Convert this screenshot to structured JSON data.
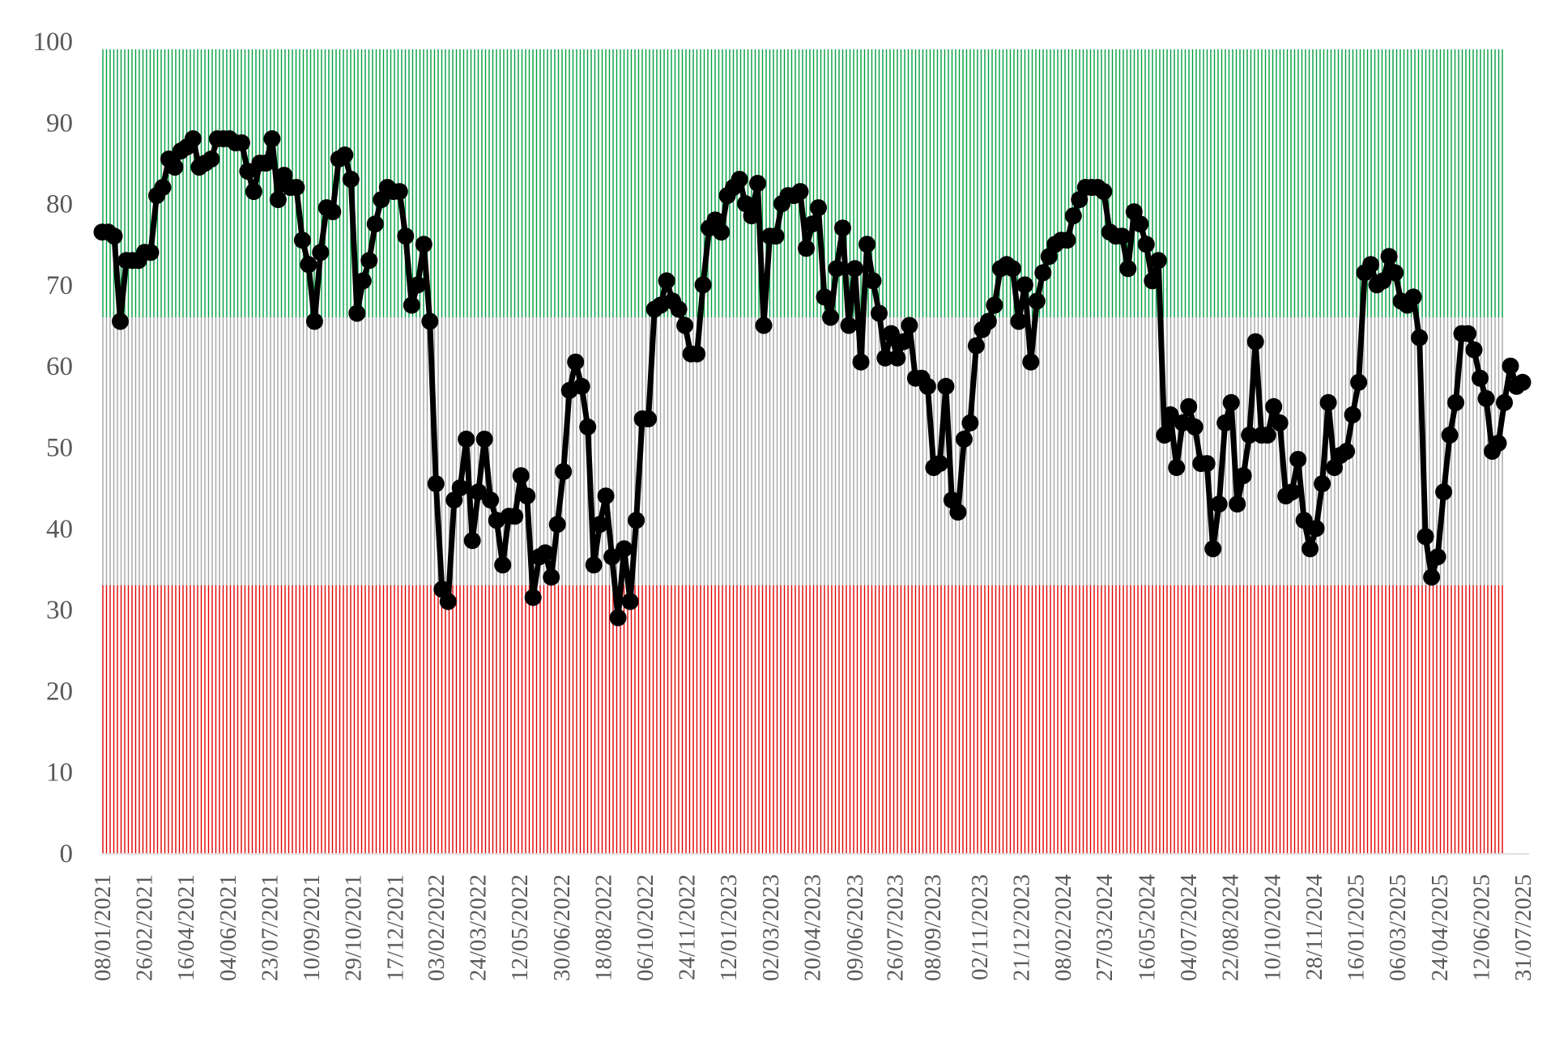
{
  "chart_data": {
    "type": "line",
    "title": "",
    "xlabel": "",
    "ylabel": "",
    "ylim": [
      0,
      100
    ],
    "y_ticks": [
      0,
      10,
      20,
      30,
      40,
      50,
      60,
      70,
      80,
      90,
      100
    ],
    "x_range": [
      "2021-01-08",
      "2025-07-31"
    ],
    "x_tick_labels": [
      "08/01/2021",
      "26/02/2021",
      "16/04/2021",
      "04/06/2021",
      "23/07/2021",
      "10/09/2021",
      "29/10/2021",
      "17/12/2021",
      "03/02/2022",
      "24/03/2022",
      "12/05/2022",
      "30/06/2022",
      "18/08/2022",
      "06/10/2022",
      "24/11/2022",
      "12/01/2023",
      "02/03/2023",
      "20/04/2023",
      "09/06/2023",
      "26/07/2023",
      "08/09/2023",
      "02/11/2023",
      "21/12/2023",
      "08/02/2024",
      "27/03/2024",
      "16/05/2024",
      "04/07/2024",
      "22/08/2024",
      "10/10/2024",
      "28/11/2024",
      "16/01/2025",
      "06/03/2025",
      "24/04/2025",
      "12/06/2025",
      "31/07/2025"
    ],
    "bands": [
      {
        "from": 0,
        "to": 33,
        "color": "#e00000"
      },
      {
        "from": 33,
        "to": 66,
        "color": "#a6a6a6"
      },
      {
        "from": 66,
        "to": 99,
        "color": "#00a040"
      }
    ],
    "band_end": "2025-07-11",
    "grid": false,
    "legend": "none",
    "series": [
      {
        "color": "#000000",
        "values": [
          76.5,
          76.5,
          76,
          65.5,
          73,
          73,
          73,
          74,
          74,
          81,
          82,
          85.5,
          84.5,
          86.5,
          87,
          88,
          84.5,
          85,
          85.5,
          88,
          88,
          88,
          87.5,
          87.5,
          84,
          81.5,
          85,
          85,
          88,
          80.5,
          83.5,
          82,
          82,
          75.5,
          72.5,
          65.5,
          74,
          79.5,
          79,
          85.5,
          86,
          83,
          66.5,
          70.5,
          73,
          77.5,
          80.5,
          82,
          81.5,
          81.5,
          76,
          67.5,
          70,
          75,
          65.5,
          45.5,
          32.5,
          31,
          43.5,
          45,
          51,
          38.5,
          44.5,
          51,
          43.5,
          41,
          35.5,
          41.5,
          41.5,
          46.5,
          44,
          31.5,
          36.5,
          37,
          34,
          40.5,
          47,
          57,
          60.5,
          57.5,
          52.5,
          35.5,
          40.5,
          44,
          36.5,
          29,
          37.5,
          31,
          41,
          53.5,
          53.5,
          67,
          67.5,
          70.5,
          68,
          67,
          65,
          61.5,
          61.5,
          70,
          77,
          78,
          76.5,
          81,
          82,
          83,
          80,
          78.5,
          82.5,
          65,
          76,
          76,
          80,
          81,
          81,
          81.5,
          74.5,
          77.5,
          79.5,
          68.5,
          66,
          72,
          77,
          65,
          72,
          60.5,
          75,
          70.5,
          66.5,
          61,
          64,
          61,
          63,
          65,
          58.5,
          58.5,
          57.5,
          47.5,
          48,
          57.5,
          43.5,
          42,
          51,
          53,
          62.5,
          64.5,
          65.5,
          67.5,
          72,
          72.5,
          72,
          65.5,
          70,
          60.5,
          68,
          71.5,
          73.5,
          75,
          75.5,
          75.5,
          78.5,
          80.5,
          82,
          82,
          82,
          81.5,
          76.5,
          76,
          76,
          72,
          79,
          77.5,
          75,
          70.5,
          73,
          51.5,
          54,
          47.5,
          53,
          55,
          52.5,
          48,
          48,
          37.5,
          43,
          53,
          55.5,
          43,
          46.5,
          51.5,
          63,
          51.5,
          51.5,
          55,
          53,
          44,
          44.5,
          48.5,
          41,
          37.5,
          40,
          45.5,
          55.5,
          47.5,
          49,
          49.5,
          54,
          58,
          71.5,
          72.5,
          70,
          70.5,
          73.5,
          71.5,
          68,
          67.5,
          68.5,
          63.5,
          39,
          34,
          36.5,
          44.5,
          51.5,
          55.5,
          64,
          64,
          62,
          58.5,
          56,
          49.5,
          50.5,
          55.5,
          60,
          57.5,
          58
        ]
      }
    ]
  }
}
